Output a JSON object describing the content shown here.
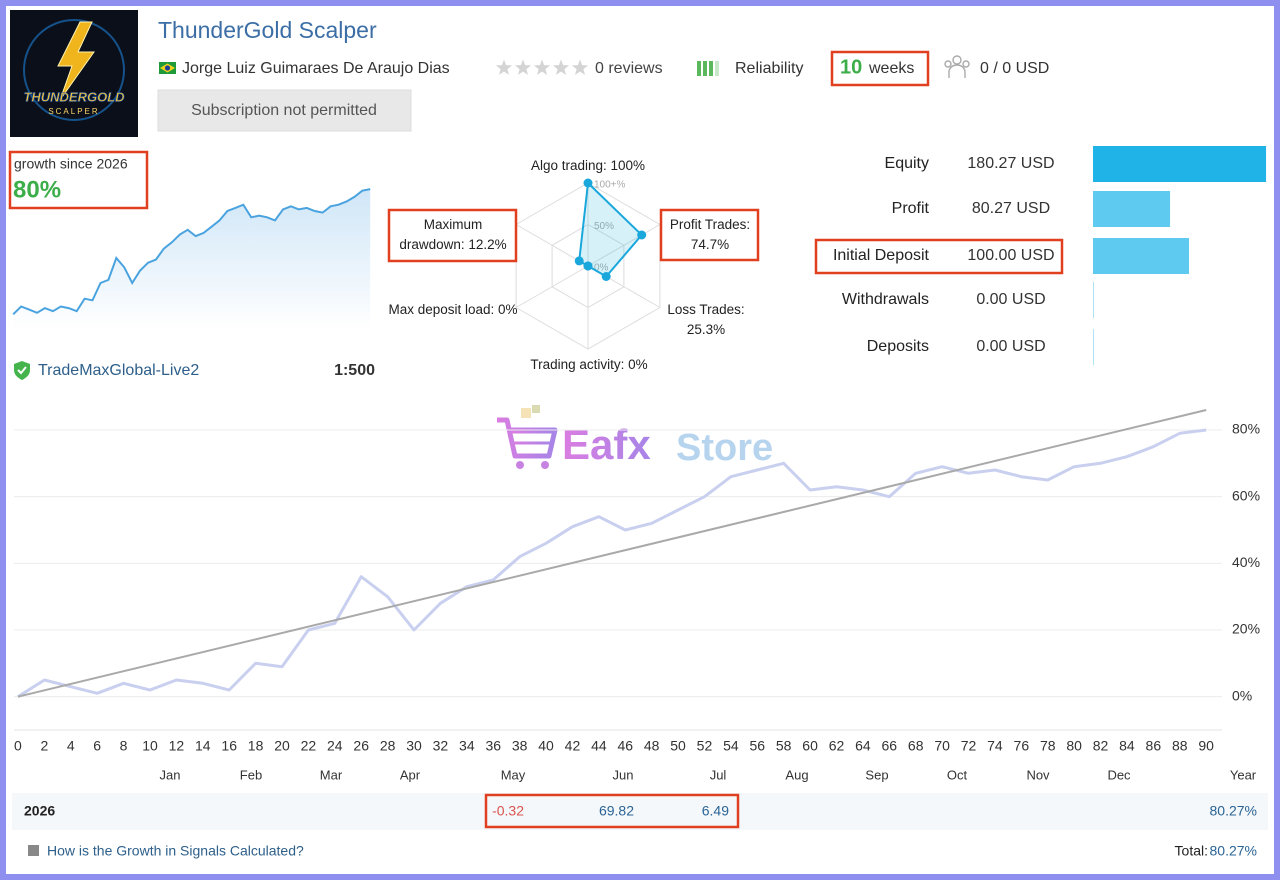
{
  "header": {
    "title": "ThunderGold Scalper",
    "logo_text": "THUNDERGOLD",
    "logo_sub": "SCALPER",
    "author": "Jorge Luiz Guimaraes De Araujo Dias",
    "reviews": "0 reviews",
    "reliability": "Reliability",
    "weeks_number": "10",
    "weeks_unit": "weeks",
    "subscribers": "0 / 0 USD",
    "subscription_button": "Subscription not permitted"
  },
  "growth": {
    "label": "growth since 2026",
    "value": "80%"
  },
  "account": {
    "server": "TradeMaxGlobal-Live2",
    "leverage": "1:500"
  },
  "radar": {
    "axes": [
      {
        "name": "Algo trading:",
        "value": 100,
        "value_label": "100%"
      },
      {
        "name": "Profit Trades:",
        "value": 74.7,
        "value_label": "74.7%"
      },
      {
        "name": "Loss Trades:",
        "value": 25.3,
        "value_label": "25.3%"
      },
      {
        "name": "Trading activity:",
        "value": 0,
        "value_label": "0%"
      },
      {
        "name": "Max deposit load:",
        "value": 0,
        "value_label": "0%"
      },
      {
        "name": "Maximum drawdown:",
        "value": 12.2,
        "value_label": "12.2%"
      }
    ],
    "rlim": [
      0,
      100
    ],
    "rticks": [
      {
        "value": 0,
        "label": "0%"
      },
      {
        "value": 50,
        "label": "50%"
      },
      {
        "value": 100,
        "label": "100+%"
      }
    ]
  },
  "balance": {
    "rows": [
      {
        "label": "Equity",
        "value": 180.27,
        "value_label": "180.27 USD",
        "color": "#1fb3e8"
      },
      {
        "label": "Profit",
        "value": 80.27,
        "value_label": "80.27 USD",
        "color": "#5fcaf0"
      },
      {
        "label": "Initial Deposit",
        "value": 100,
        "value_label": "100.00 USD",
        "color": "#5fcaf0"
      },
      {
        "label": "Withdrawals",
        "value": 0,
        "value_label": "0.00 USD",
        "color": "#5fcaf0"
      },
      {
        "label": "Deposits",
        "value": 0,
        "value_label": "0.00 USD",
        "color": "#5fcaf0"
      }
    ]
  },
  "watermark": {
    "brand1": "Eafx",
    "brand2": "Store"
  },
  "chart_data": {
    "type": "line",
    "xlim": [
      -0.3,
      91.2
    ],
    "xticks": [
      0,
      2,
      4,
      6,
      8,
      10,
      12,
      14,
      16,
      18,
      20,
      22,
      24,
      26,
      28,
      30,
      32,
      34,
      36,
      38,
      40,
      42,
      44,
      46,
      48,
      50,
      52,
      54,
      56,
      58,
      60,
      62,
      64,
      66,
      68,
      70,
      72,
      74,
      76,
      78,
      80,
      82,
      84,
      86,
      88,
      90
    ],
    "ylim": [
      -10,
      89
    ],
    "yticks": [
      {
        "value": 0,
        "label": "0%"
      },
      {
        "value": 20,
        "label": "20%"
      },
      {
        "value": 40,
        "label": "40%"
      },
      {
        "value": 60,
        "label": "60%"
      },
      {
        "value": 80,
        "label": "80%"
      }
    ],
    "grid": true,
    "months": [
      "Jan",
      "Feb",
      "Mar",
      "Apr",
      "May",
      "Jun",
      "Jul",
      "Aug",
      "Sep",
      "Oct",
      "Nov",
      "Dec"
    ],
    "year_label": "Year",
    "series": [
      {
        "color": "#c9d0ef",
        "x": [
          0,
          2,
          4,
          6,
          8,
          10,
          12,
          14,
          16,
          18,
          20,
          22,
          24,
          26,
          28,
          30,
          32,
          34,
          36,
          38,
          40,
          42,
          44,
          46,
          48,
          50,
          52,
          54,
          56,
          58,
          60,
          62,
          64,
          66,
          68,
          70,
          72,
          74,
          76,
          78,
          80,
          82,
          84,
          86,
          88,
          90
        ],
        "values": [
          0,
          5,
          3,
          1,
          4,
          2,
          5,
          4,
          2,
          10,
          9,
          20,
          22,
          36,
          30,
          20,
          28,
          33,
          35,
          42,
          46,
          51,
          54,
          50,
          52,
          56,
          60,
          66,
          68,
          70,
          62,
          63,
          62,
          60,
          67,
          69,
          67,
          68,
          66,
          65,
          69,
          70,
          72,
          75,
          79,
          80
        ]
      },
      {
        "color": "#a9a9a9",
        "x": [
          0,
          90
        ],
        "values": [
          0,
          86
        ]
      }
    ]
  },
  "table": {
    "year": "2026",
    "values": [
      null,
      null,
      null,
      null,
      -0.32,
      69.82,
      6.49,
      null,
      null,
      null,
      null,
      null
    ],
    "total": "80.27%"
  },
  "footer": {
    "link": "How is the Growth in Signals Calculated?",
    "total_label": "Total:",
    "total_value": "80.27%"
  }
}
